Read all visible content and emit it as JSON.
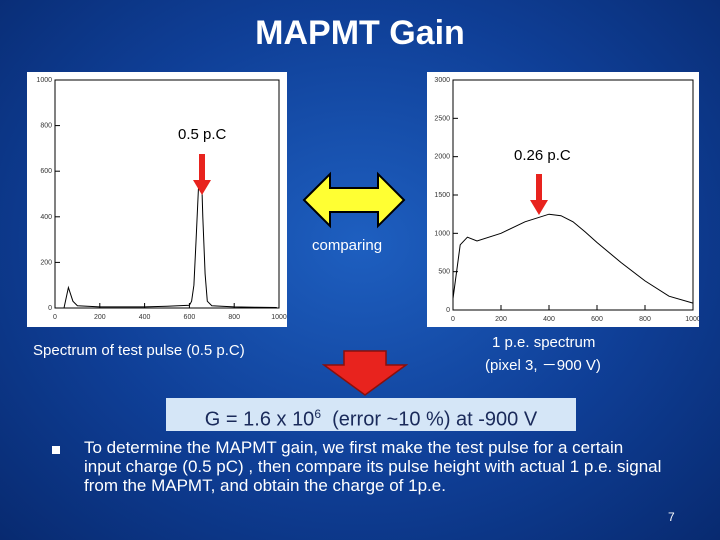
{
  "slide": {
    "title": "MAPMT Gain",
    "page_number": "7"
  },
  "left_plot": {
    "annotation": "0.5 p.C",
    "caption": "Spectrum of test pulse (0.5 p.C)"
  },
  "right_plot": {
    "annotation": "0.26 p.C",
    "caption_line1": "1 p.e. spectrum",
    "caption_line2": "(pixel 3, －900 V)"
  },
  "comparing_label": "comparing",
  "result": {
    "prefix": "G = 1.6 x 10",
    "exponent": "6",
    "suffix": "  (error ~10 %) at -900 V"
  },
  "bullet": {
    "text": "To determine the MAPMT gain, we first make the test pulse for a certain input charge (0.5 pC) , then compare its pulse height with actual 1 p.e.  signal from the MAPMT, and obtain the charge of 1p.e."
  },
  "colors": {
    "arrow_red": "#e8231e",
    "arrow_yellow": "#ffff33",
    "background": "#1550b0",
    "result_box": "#d5e6f7"
  },
  "chart_data": [
    {
      "type": "line",
      "xlim": [
        0,
        1000
      ],
      "ylim": [
        0,
        1000
      ],
      "x_ticks": [
        "0",
        "200",
        "400",
        "600",
        "800",
        "1000"
      ],
      "y_ticks": [
        "0",
        "200",
        "400",
        "600",
        "800",
        "1000"
      ],
      "series": [
        {
          "x": [
            40,
            60,
            80,
            100,
            200,
            300,
            400,
            500,
            600,
            610,
            620,
            630,
            640,
            650,
            655,
            660,
            670,
            680,
            700,
            800,
            900,
            990
          ],
          "y": [
            0,
            90,
            30,
            10,
            5,
            5,
            5,
            8,
            12,
            30,
            100,
            300,
            520,
            600,
            560,
            400,
            150,
            30,
            10,
            5,
            3,
            2
          ]
        }
      ]
    },
    {
      "type": "line",
      "xlim": [
        0,
        1000
      ],
      "ylim": [
        0,
        3000
      ],
      "x_ticks": [
        "0",
        "200",
        "400",
        "600",
        "800",
        "1000"
      ],
      "y_ticks": [
        "0",
        "500",
        "1000",
        "1500",
        "2000",
        "2500",
        "3000"
      ],
      "series": [
        {
          "x": [
            0,
            30,
            60,
            100,
            200,
            300,
            400,
            450,
            500,
            550,
            600,
            700,
            800,
            900,
            1000
          ],
          "y": [
            150,
            850,
            950,
            900,
            1000,
            1150,
            1250,
            1230,
            1150,
            1020,
            880,
            620,
            380,
            180,
            90
          ]
        }
      ]
    }
  ]
}
